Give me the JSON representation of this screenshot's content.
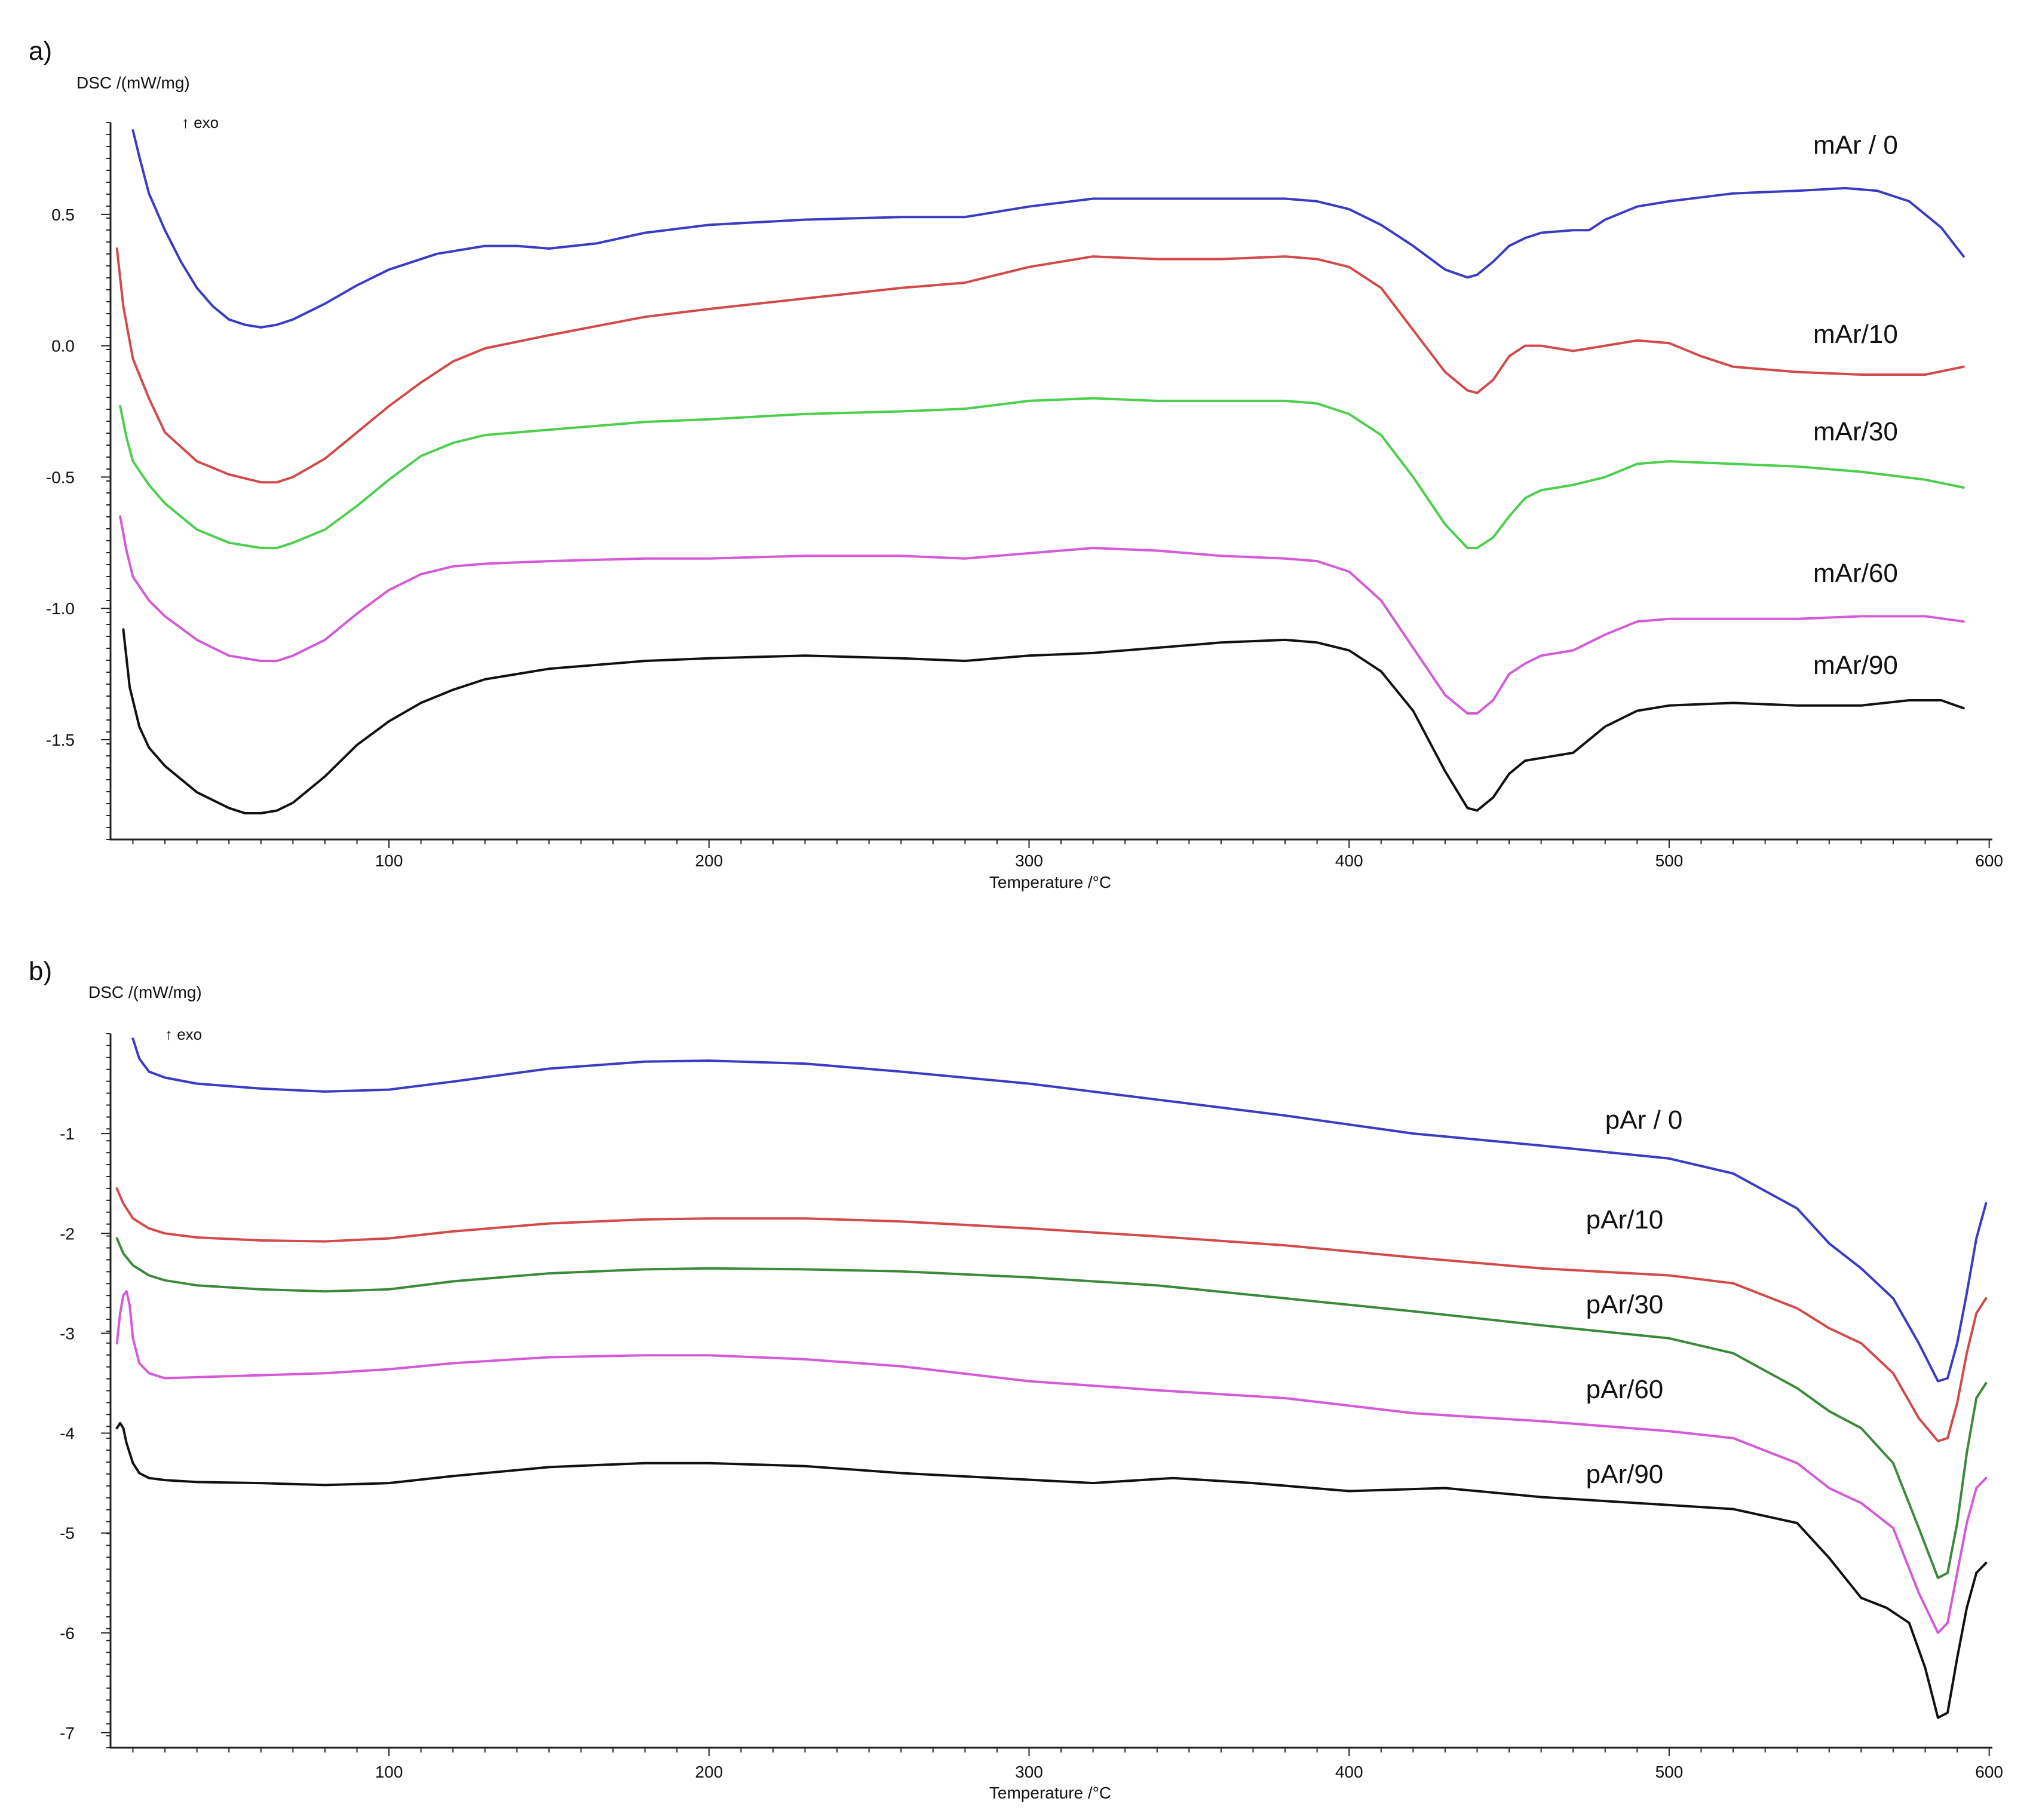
{
  "chart_data": [
    {
      "type": "line",
      "panel_label": "a)",
      "ylabel": "DSC /(mW/mg)",
      "exo_label": "↑ exo",
      "xlabel": "Temperature /°C",
      "xlim": [
        13,
        601
      ],
      "ylim": [
        -1.88,
        0.85
      ],
      "xticks": [
        100,
        200,
        300,
        400,
        500,
        600
      ],
      "yticks": [
        0.5,
        0.0,
        -0.5,
        -1.0,
        -1.5
      ],
      "ytick_labels": [
        "0.5",
        "0.0",
        "-0.5",
        "-1.0",
        "-1.5"
      ],
      "series": [
        {
          "name": "mAr / 0",
          "color": "#3b3bc4",
          "label_x": 545,
          "label_y": 0.73,
          "x": [
            20,
            22,
            25,
            30,
            35,
            40,
            45,
            50,
            55,
            60,
            65,
            70,
            80,
            90,
            100,
            115,
            130,
            140,
            150,
            165,
            180,
            200,
            230,
            260,
            280,
            300,
            320,
            340,
            360,
            380,
            390,
            400,
            410,
            420,
            430,
            437,
            440,
            445,
            450,
            455,
            460,
            470,
            475,
            480,
            490,
            500,
            520,
            540,
            555,
            565,
            575,
            585,
            592
          ],
          "y": [
            0.82,
            0.72,
            0.58,
            0.44,
            0.32,
            0.22,
            0.15,
            0.1,
            0.08,
            0.07,
            0.08,
            0.1,
            0.16,
            0.23,
            0.29,
            0.35,
            0.38,
            0.38,
            0.37,
            0.39,
            0.43,
            0.46,
            0.48,
            0.49,
            0.49,
            0.53,
            0.56,
            0.56,
            0.56,
            0.56,
            0.55,
            0.52,
            0.46,
            0.38,
            0.29,
            0.26,
            0.27,
            0.32,
            0.38,
            0.41,
            0.43,
            0.44,
            0.44,
            0.48,
            0.53,
            0.55,
            0.58,
            0.59,
            0.6,
            0.59,
            0.55,
            0.45,
            0.34
          ]
        },
        {
          "name": "mAr/10",
          "color": "#d24a4a",
          "label_x": 545,
          "label_y": 0.01,
          "x": [
            15,
            17,
            20,
            25,
            30,
            40,
            50,
            60,
            65,
            70,
            80,
            90,
            100,
            110,
            120,
            130,
            150,
            180,
            200,
            230,
            260,
            280,
            300,
            320,
            340,
            360,
            380,
            390,
            400,
            410,
            420,
            430,
            437,
            440,
            445,
            450,
            455,
            460,
            470,
            480,
            490,
            500,
            510,
            520,
            540,
            560,
            580,
            592
          ],
          "y": [
            0.37,
            0.15,
            -0.05,
            -0.2,
            -0.33,
            -0.44,
            -0.49,
            -0.52,
            -0.52,
            -0.5,
            -0.43,
            -0.33,
            -0.23,
            -0.14,
            -0.06,
            -0.01,
            0.04,
            0.11,
            0.14,
            0.18,
            0.22,
            0.24,
            0.3,
            0.34,
            0.33,
            0.33,
            0.34,
            0.33,
            0.3,
            0.22,
            0.06,
            -0.1,
            -0.17,
            -0.18,
            -0.13,
            -0.04,
            0.0,
            0.0,
            -0.02,
            0.0,
            0.02,
            0.01,
            -0.04,
            -0.08,
            -0.1,
            -0.11,
            -0.11,
            -0.08
          ]
        },
        {
          "name": "mAr/30",
          "color": "#4ccf4c",
          "label_x": 545,
          "label_y": -0.36,
          "x": [
            16,
            18,
            20,
            25,
            30,
            40,
            50,
            60,
            65,
            70,
            80,
            90,
            100,
            110,
            120,
            130,
            150,
            180,
            200,
            230,
            260,
            280,
            300,
            320,
            340,
            360,
            380,
            390,
            400,
            410,
            420,
            430,
            437,
            440,
            445,
            450,
            455,
            460,
            470,
            480,
            490,
            500,
            520,
            540,
            560,
            580,
            592
          ],
          "y": [
            -0.23,
            -0.35,
            -0.44,
            -0.53,
            -0.6,
            -0.7,
            -0.75,
            -0.77,
            -0.77,
            -0.75,
            -0.7,
            -0.61,
            -0.51,
            -0.42,
            -0.37,
            -0.34,
            -0.32,
            -0.29,
            -0.28,
            -0.26,
            -0.25,
            -0.24,
            -0.21,
            -0.2,
            -0.21,
            -0.21,
            -0.21,
            -0.22,
            -0.26,
            -0.34,
            -0.5,
            -0.68,
            -0.77,
            -0.77,
            -0.73,
            -0.65,
            -0.58,
            -0.55,
            -0.53,
            -0.5,
            -0.45,
            -0.44,
            -0.45,
            -0.46,
            -0.48,
            -0.51,
            -0.54
          ]
        },
        {
          "name": "mAr/60",
          "color": "#d45ad8",
          "label_x": 545,
          "label_y": -0.9,
          "x": [
            16,
            18,
            20,
            25,
            30,
            40,
            50,
            60,
            65,
            70,
            80,
            90,
            100,
            110,
            120,
            130,
            150,
            180,
            200,
            230,
            260,
            280,
            300,
            320,
            340,
            360,
            380,
            390,
            400,
            410,
            420,
            430,
            437,
            440,
            445,
            450,
            455,
            460,
            470,
            480,
            490,
            500,
            520,
            540,
            560,
            580,
            592
          ],
          "y": [
            -0.65,
            -0.78,
            -0.88,
            -0.97,
            -1.03,
            -1.12,
            -1.18,
            -1.2,
            -1.2,
            -1.18,
            -1.12,
            -1.02,
            -0.93,
            -0.87,
            -0.84,
            -0.83,
            -0.82,
            -0.81,
            -0.81,
            -0.8,
            -0.8,
            -0.81,
            -0.79,
            -0.77,
            -0.78,
            -0.8,
            -0.81,
            -0.82,
            -0.86,
            -0.97,
            -1.15,
            -1.33,
            -1.4,
            -1.4,
            -1.35,
            -1.25,
            -1.21,
            -1.18,
            -1.16,
            -1.1,
            -1.05,
            -1.04,
            -1.04,
            -1.04,
            -1.03,
            -1.03,
            -1.05
          ]
        },
        {
          "name": "mAr/90",
          "color": "#111111",
          "label_x": 545,
          "label_y": -1.25,
          "x": [
            17,
            19,
            22,
            25,
            30,
            40,
            50,
            55,
            60,
            65,
            70,
            80,
            90,
            100,
            110,
            120,
            130,
            150,
            180,
            200,
            230,
            260,
            280,
            300,
            320,
            340,
            360,
            380,
            390,
            400,
            410,
            420,
            430,
            437,
            440,
            445,
            450,
            455,
            460,
            470,
            480,
            490,
            500,
            520,
            540,
            560,
            575,
            585,
            592
          ],
          "y": [
            -1.08,
            -1.3,
            -1.45,
            -1.53,
            -1.6,
            -1.7,
            -1.76,
            -1.78,
            -1.78,
            -1.77,
            -1.74,
            -1.64,
            -1.52,
            -1.43,
            -1.36,
            -1.31,
            -1.27,
            -1.23,
            -1.2,
            -1.19,
            -1.18,
            -1.19,
            -1.2,
            -1.18,
            -1.17,
            -1.15,
            -1.13,
            -1.12,
            -1.13,
            -1.16,
            -1.24,
            -1.39,
            -1.62,
            -1.76,
            -1.77,
            -1.72,
            -1.63,
            -1.58,
            -1.57,
            -1.55,
            -1.45,
            -1.39,
            -1.37,
            -1.36,
            -1.37,
            -1.37,
            -1.35,
            -1.35,
            -1.38
          ]
        }
      ]
    },
    {
      "type": "line",
      "panel_label": "b)",
      "ylabel": "DSC /(mW/mg)",
      "exo_label": "↑ exo",
      "xlabel": "Temperature /°C",
      "xlim": [
        13,
        601
      ],
      "ylim": [
        -7.15,
        0.0
      ],
      "xticks": [
        100,
        200,
        300,
        400,
        500,
        600
      ],
      "yticks": [
        -1,
        -2,
        -3,
        -4,
        -5,
        -6,
        -7
      ],
      "ytick_labels": [
        "-1",
        "-2",
        "-3",
        "-4",
        "-5",
        "-6",
        "-7"
      ],
      "series": [
        {
          "name": "pAr / 0",
          "color": "#3b3bc4",
          "label_x": 480,
          "label_y": -0.95,
          "x": [
            20,
            22,
            25,
            30,
            40,
            60,
            80,
            100,
            120,
            150,
            180,
            200,
            230,
            260,
            300,
            340,
            380,
            420,
            460,
            500,
            520,
            540,
            550,
            560,
            570,
            578,
            584,
            587,
            590,
            593,
            596,
            599
          ],
          "y": [
            -0.05,
            -0.25,
            -0.38,
            -0.44,
            -0.5,
            -0.55,
            -0.58,
            -0.56,
            -0.48,
            -0.35,
            -0.28,
            -0.27,
            -0.3,
            -0.38,
            -0.5,
            -0.66,
            -0.82,
            -1.0,
            -1.12,
            -1.25,
            -1.4,
            -1.75,
            -2.1,
            -2.35,
            -2.65,
            -3.1,
            -3.48,
            -3.45,
            -3.1,
            -2.6,
            -2.05,
            -1.7
          ]
        },
        {
          "name": "pAr/10",
          "color": "#d24a4a",
          "label_x": 474,
          "label_y": -1.95,
          "x": [
            15,
            17,
            20,
            25,
            30,
            40,
            60,
            80,
            100,
            120,
            150,
            180,
            200,
            230,
            260,
            300,
            340,
            380,
            420,
            460,
            500,
            520,
            540,
            550,
            560,
            570,
            578,
            584,
            587,
            590,
            593,
            596,
            599
          ],
          "y": [
            -1.55,
            -1.7,
            -1.85,
            -1.95,
            -2.0,
            -2.04,
            -2.07,
            -2.08,
            -2.05,
            -1.98,
            -1.9,
            -1.86,
            -1.85,
            -1.85,
            -1.88,
            -1.95,
            -2.03,
            -2.12,
            -2.24,
            -2.35,
            -2.42,
            -2.5,
            -2.75,
            -2.95,
            -3.1,
            -3.4,
            -3.85,
            -4.08,
            -4.05,
            -3.7,
            -3.2,
            -2.8,
            -2.65
          ]
        },
        {
          "name": "pAr/30",
          "color": "#3b8a3b",
          "label_x": 474,
          "label_y": -2.8,
          "x": [
            15,
            17,
            20,
            25,
            30,
            40,
            60,
            80,
            100,
            120,
            150,
            180,
            200,
            230,
            260,
            300,
            340,
            380,
            420,
            460,
            500,
            520,
            540,
            550,
            560,
            570,
            578,
            584,
            587,
            590,
            593,
            596,
            599
          ],
          "y": [
            -2.05,
            -2.2,
            -2.32,
            -2.42,
            -2.47,
            -2.52,
            -2.56,
            -2.58,
            -2.56,
            -2.48,
            -2.4,
            -2.36,
            -2.35,
            -2.36,
            -2.38,
            -2.44,
            -2.52,
            -2.65,
            -2.78,
            -2.92,
            -3.05,
            -3.2,
            -3.55,
            -3.78,
            -3.95,
            -4.3,
            -4.95,
            -5.45,
            -5.4,
            -4.9,
            -4.2,
            -3.65,
            -3.5
          ]
        },
        {
          "name": "pAr/60",
          "color": "#d45ad8",
          "label_x": 474,
          "label_y": -3.65,
          "x": [
            15,
            16,
            17,
            18,
            19,
            20,
            22,
            25,
            30,
            40,
            60,
            80,
            100,
            120,
            150,
            180,
            200,
            230,
            260,
            300,
            340,
            380,
            420,
            460,
            500,
            520,
            540,
            550,
            560,
            570,
            578,
            584,
            587,
            590,
            593,
            596,
            599
          ],
          "y": [
            -3.1,
            -2.8,
            -2.62,
            -2.58,
            -2.72,
            -3.05,
            -3.3,
            -3.4,
            -3.45,
            -3.44,
            -3.42,
            -3.4,
            -3.36,
            -3.3,
            -3.24,
            -3.22,
            -3.22,
            -3.26,
            -3.33,
            -3.48,
            -3.57,
            -3.65,
            -3.8,
            -3.88,
            -3.98,
            -4.05,
            -4.3,
            -4.55,
            -4.7,
            -4.95,
            -5.6,
            -6.0,
            -5.9,
            -5.4,
            -4.9,
            -4.55,
            -4.45
          ]
        },
        {
          "name": "pAr/90",
          "color": "#111111",
          "label_x": 474,
          "label_y": -4.5,
          "x": [
            15,
            16,
            17,
            18,
            20,
            22,
            25,
            30,
            40,
            60,
            80,
            100,
            120,
            150,
            180,
            200,
            230,
            260,
            290,
            320,
            345,
            370,
            400,
            430,
            460,
            500,
            520,
            540,
            550,
            560,
            568,
            575,
            580,
            584,
            587,
            590,
            593,
            596,
            599
          ],
          "y": [
            -3.95,
            -3.9,
            -3.95,
            -4.1,
            -4.3,
            -4.4,
            -4.45,
            -4.47,
            -4.49,
            -4.5,
            -4.52,
            -4.5,
            -4.43,
            -4.34,
            -4.3,
            -4.3,
            -4.33,
            -4.4,
            -4.45,
            -4.5,
            -4.45,
            -4.5,
            -4.58,
            -4.55,
            -4.64,
            -4.72,
            -4.76,
            -4.9,
            -5.25,
            -5.65,
            -5.75,
            -5.9,
            -6.35,
            -6.85,
            -6.8,
            -6.25,
            -5.75,
            -5.4,
            -5.3
          ]
        }
      ]
    }
  ]
}
